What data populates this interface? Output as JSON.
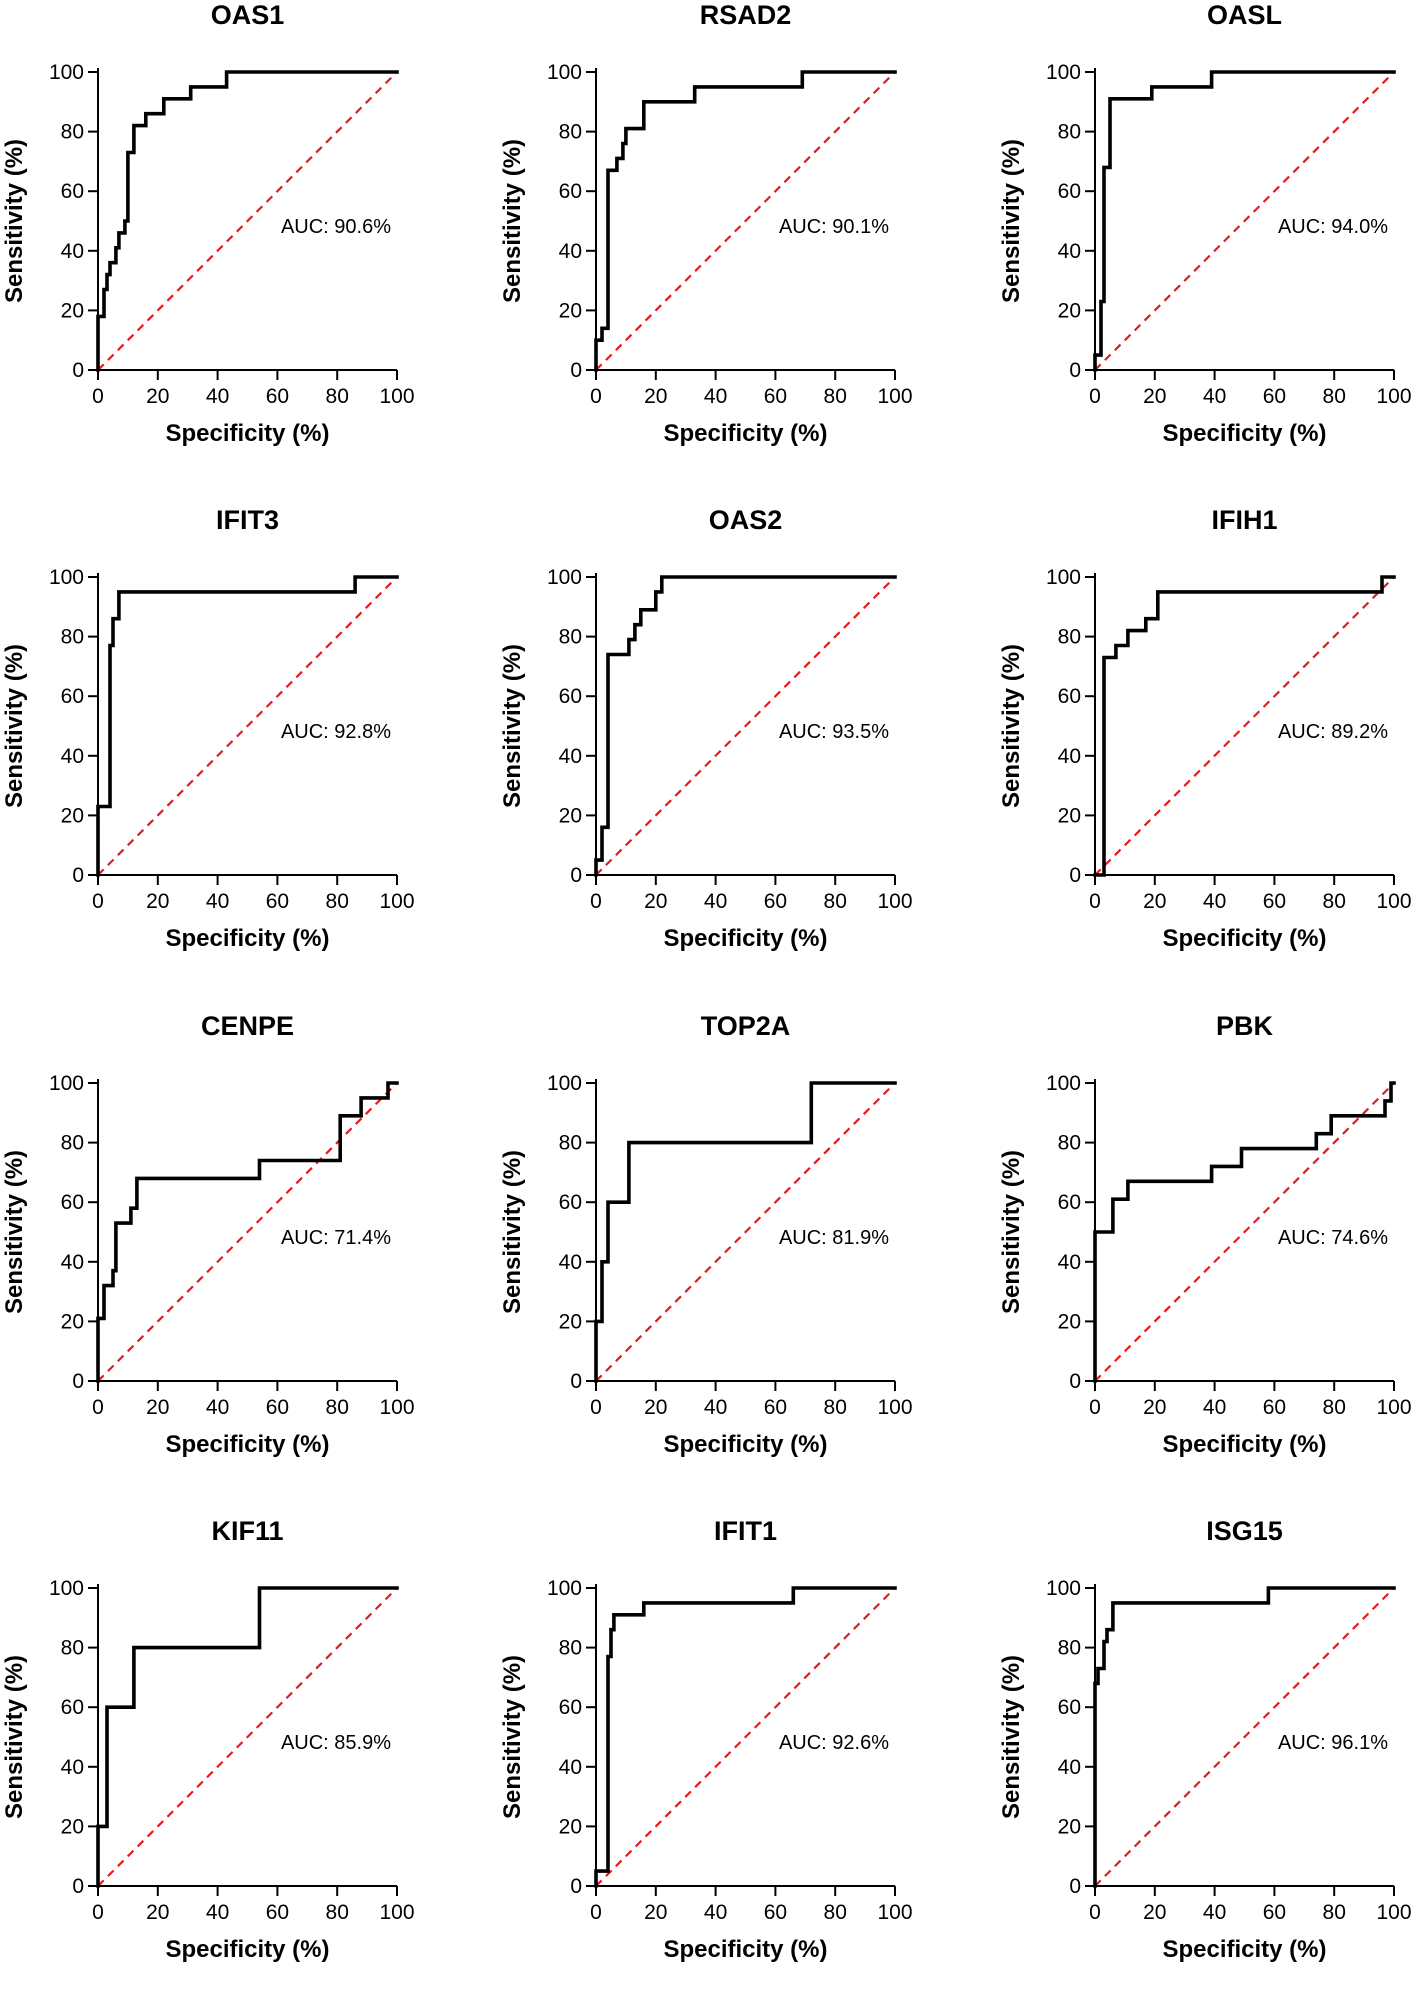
{
  "chart_data": [
    {
      "type": "line",
      "title": "OAS1",
      "xlabel": "Specificity (%)",
      "ylabel": "Sensitivity (%)",
      "xlim": [
        0,
        100
      ],
      "ylim": [
        0,
        100
      ],
      "xticks": [
        0,
        20,
        40,
        60,
        80,
        100
      ],
      "yticks": [
        0,
        20,
        40,
        60,
        80,
        100
      ],
      "auc_label": "AUC: 90.6%",
      "series": [
        {
          "name": "ROC",
          "x": [
            0,
            0,
            2,
            2,
            3,
            3,
            4,
            4,
            6,
            6,
            7,
            7,
            9,
            9,
            10,
            10,
            12,
            12,
            16,
            16,
            22,
            22,
            25,
            25,
            31,
            31,
            36,
            36,
            43,
            43,
            100
          ],
          "y": [
            0,
            18,
            18,
            27,
            27,
            32,
            32,
            36,
            36,
            41,
            41,
            46,
            46,
            50,
            50,
            73,
            73,
            82,
            82,
            86,
            86,
            91,
            91,
            91,
            91,
            95,
            95,
            95,
            95,
            100,
            100
          ]
        },
        {
          "name": "Reference",
          "x": [
            0,
            100
          ],
          "y": [
            0,
            100
          ]
        }
      ]
    },
    {
      "type": "line",
      "title": "RSAD2",
      "xlabel": "Specificity (%)",
      "ylabel": "Sensitivity (%)",
      "xlim": [
        0,
        100
      ],
      "ylim": [
        0,
        100
      ],
      "xticks": [
        0,
        20,
        40,
        60,
        80,
        100
      ],
      "yticks": [
        0,
        20,
        40,
        60,
        80,
        100
      ],
      "auc_label": "AUC: 90.1%",
      "series": [
        {
          "name": "ROC",
          "x": [
            0,
            0,
            2,
            2,
            4,
            4,
            7,
            7,
            9,
            9,
            10,
            10,
            13,
            13,
            16,
            16,
            33,
            33,
            69,
            69,
            100
          ],
          "y": [
            0,
            10,
            10,
            14,
            14,
            67,
            67,
            71,
            71,
            76,
            76,
            81,
            81,
            81,
            81,
            90,
            90,
            95,
            95,
            100,
            100
          ]
        },
        {
          "name": "Reference",
          "x": [
            0,
            100
          ],
          "y": [
            0,
            100
          ]
        }
      ]
    },
    {
      "type": "line",
      "title": "OASL",
      "xlabel": "Specificity (%)",
      "ylabel": "Sensitivity (%)",
      "xlim": [
        0,
        100
      ],
      "ylim": [
        0,
        100
      ],
      "xticks": [
        0,
        20,
        40,
        60,
        80,
        100
      ],
      "yticks": [
        0,
        20,
        40,
        60,
        80,
        100
      ],
      "auc_label": "AUC: 94.0%",
      "series": [
        {
          "name": "ROC",
          "x": [
            0,
            0,
            2,
            2,
            3,
            3,
            5,
            5,
            6,
            6,
            19,
            19,
            39,
            39,
            100
          ],
          "y": [
            0,
            5,
            5,
            23,
            23,
            68,
            68,
            91,
            91,
            91,
            91,
            95,
            95,
            100,
            100
          ]
        },
        {
          "name": "Reference",
          "x": [
            0,
            100
          ],
          "y": [
            0,
            100
          ]
        }
      ]
    },
    {
      "type": "line",
      "title": "IFIT3",
      "xlabel": "Specificity (%)",
      "ylabel": "Sensitivity (%)",
      "xlim": [
        0,
        100
      ],
      "ylim": [
        0,
        100
      ],
      "xticks": [
        0,
        20,
        40,
        60,
        80,
        100
      ],
      "yticks": [
        0,
        20,
        40,
        60,
        80,
        100
      ],
      "auc_label": "AUC: 92.8%",
      "series": [
        {
          "name": "ROC",
          "x": [
            0,
            0,
            4,
            4,
            5,
            5,
            7,
            7,
            86,
            86,
            100
          ],
          "y": [
            0,
            23,
            23,
            77,
            77,
            86,
            86,
            95,
            95,
            100,
            100
          ]
        },
        {
          "name": "Reference",
          "x": [
            0,
            100
          ],
          "y": [
            0,
            100
          ]
        }
      ]
    },
    {
      "type": "line",
      "title": "OAS2",
      "xlabel": "Specificity (%)",
      "ylabel": "Sensitivity (%)",
      "xlim": [
        0,
        100
      ],
      "ylim": [
        0,
        100
      ],
      "xticks": [
        0,
        20,
        40,
        60,
        80,
        100
      ],
      "yticks": [
        0,
        20,
        40,
        60,
        80,
        100
      ],
      "auc_label": "AUC: 93.5%",
      "series": [
        {
          "name": "ROC",
          "x": [
            0,
            0,
            2,
            2,
            4,
            4,
            11,
            11,
            13,
            13,
            15,
            15,
            20,
            20,
            22,
            22,
            100
          ],
          "y": [
            0,
            5,
            5,
            16,
            16,
            74,
            74,
            79,
            79,
            84,
            84,
            89,
            89,
            95,
            95,
            100,
            100
          ]
        },
        {
          "name": "Reference",
          "x": [
            0,
            100
          ],
          "y": [
            0,
            100
          ]
        }
      ]
    },
    {
      "type": "line",
      "title": "IFIH1",
      "xlabel": "Specificity (%)",
      "ylabel": "Sensitivity (%)",
      "xlim": [
        0,
        100
      ],
      "ylim": [
        0,
        100
      ],
      "xticks": [
        0,
        20,
        40,
        60,
        80,
        100
      ],
      "yticks": [
        0,
        20,
        40,
        60,
        80,
        100
      ],
      "auc_label": "AUC: 89.2%",
      "series": [
        {
          "name": "ROC",
          "x": [
            0,
            3,
            3,
            7,
            7,
            11,
            11,
            17,
            17,
            19,
            19,
            21,
            21,
            96,
            96,
            100
          ],
          "y": [
            0,
            0,
            73,
            73,
            77,
            77,
            82,
            82,
            86,
            86,
            86,
            86,
            95,
            95,
            100,
            100
          ]
        },
        {
          "name": "Reference",
          "x": [
            0,
            100
          ],
          "y": [
            0,
            100
          ]
        }
      ]
    },
    {
      "type": "line",
      "title": "CENPE",
      "xlabel": "Specificity (%)",
      "ylabel": "Sensitivity (%)",
      "xlim": [
        0,
        100
      ],
      "ylim": [
        0,
        100
      ],
      "xticks": [
        0,
        20,
        40,
        60,
        80,
        100
      ],
      "yticks": [
        0,
        20,
        40,
        60,
        80,
        100
      ],
      "auc_label": "AUC: 71.4%",
      "series": [
        {
          "name": "ROC",
          "x": [
            0,
            0,
            2,
            2,
            4,
            4,
            5,
            5,
            6,
            6,
            11,
            11,
            13,
            13,
            54,
            54,
            81,
            81,
            88,
            88,
            93,
            93,
            97,
            97,
            100
          ],
          "y": [
            0,
            21,
            21,
            32,
            32,
            32,
            32,
            37,
            37,
            53,
            53,
            58,
            58,
            68,
            68,
            74,
            74,
            89,
            89,
            95,
            95,
            95,
            95,
            100,
            100
          ]
        },
        {
          "name": "Reference",
          "x": [
            0,
            100
          ],
          "y": [
            0,
            100
          ]
        }
      ]
    },
    {
      "type": "line",
      "title": "TOP2A",
      "xlabel": "Specificity (%)",
      "ylabel": "Sensitivity (%)",
      "xlim": [
        0,
        100
      ],
      "ylim": [
        0,
        100
      ],
      "xticks": [
        0,
        20,
        40,
        60,
        80,
        100
      ],
      "yticks": [
        0,
        20,
        40,
        60,
        80,
        100
      ],
      "auc_label": "AUC: 81.9%",
      "series": [
        {
          "name": "ROC",
          "x": [
            0,
            0,
            2,
            2,
            4,
            4,
            11,
            11,
            72,
            72,
            100
          ],
          "y": [
            0,
            20,
            20,
            40,
            40,
            60,
            60,
            80,
            80,
            100,
            100
          ]
        },
        {
          "name": "Reference",
          "x": [
            0,
            100
          ],
          "y": [
            0,
            100
          ]
        }
      ]
    },
    {
      "type": "line",
      "title": "PBK",
      "xlabel": "Specificity (%)",
      "ylabel": "Sensitivity (%)",
      "xlim": [
        0,
        100
      ],
      "ylim": [
        0,
        100
      ],
      "xticks": [
        0,
        20,
        40,
        60,
        80,
        100
      ],
      "yticks": [
        0,
        20,
        40,
        60,
        80,
        100
      ],
      "auc_label": "AUC: 74.6%",
      "series": [
        {
          "name": "ROC",
          "x": [
            0,
            0,
            6,
            6,
            9,
            9,
            11,
            11,
            39,
            39,
            49,
            49,
            74,
            74,
            79,
            79,
            97,
            97,
            99,
            99,
            100
          ],
          "y": [
            0,
            50,
            50,
            61,
            61,
            61,
            61,
            67,
            67,
            72,
            72,
            78,
            78,
            83,
            83,
            89,
            89,
            94,
            94,
            100,
            100
          ]
        },
        {
          "name": "Reference",
          "x": [
            0,
            100
          ],
          "y": [
            0,
            100
          ]
        }
      ]
    },
    {
      "type": "line",
      "title": "KIF11",
      "xlabel": "Specificity (%)",
      "ylabel": "Sensitivity (%)",
      "xlim": [
        0,
        100
      ],
      "ylim": [
        0,
        100
      ],
      "xticks": [
        0,
        20,
        40,
        60,
        80,
        100
      ],
      "yticks": [
        0,
        20,
        40,
        60,
        80,
        100
      ],
      "auc_label": "AUC: 85.9%",
      "series": [
        {
          "name": "ROC",
          "x": [
            0,
            0,
            3,
            3,
            12,
            12,
            54,
            54,
            100
          ],
          "y": [
            0,
            20,
            20,
            60,
            60,
            80,
            80,
            100,
            100
          ]
        },
        {
          "name": "Reference",
          "x": [
            0,
            100
          ],
          "y": [
            0,
            100
          ]
        }
      ]
    },
    {
      "type": "line",
      "title": "IFIT1",
      "xlabel": "Specificity (%)",
      "ylabel": "Sensitivity (%)",
      "xlim": [
        0,
        100
      ],
      "ylim": [
        0,
        100
      ],
      "xticks": [
        0,
        20,
        40,
        60,
        80,
        100
      ],
      "yticks": [
        0,
        20,
        40,
        60,
        80,
        100
      ],
      "auc_label": "AUC: 92.6%",
      "series": [
        {
          "name": "ROC",
          "x": [
            0,
            0,
            4,
            4,
            5,
            5,
            6,
            6,
            16,
            16,
            66,
            66,
            100
          ],
          "y": [
            0,
            5,
            5,
            77,
            77,
            86,
            86,
            91,
            91,
            95,
            95,
            100,
            100
          ]
        },
        {
          "name": "Reference",
          "x": [
            0,
            100
          ],
          "y": [
            0,
            100
          ]
        }
      ]
    },
    {
      "type": "line",
      "title": "ISG15",
      "xlabel": "Specificity (%)",
      "ylabel": "Sensitivity (%)",
      "xlim": [
        0,
        100
      ],
      "ylim": [
        0,
        100
      ],
      "xticks": [
        0,
        20,
        40,
        60,
        80,
        100
      ],
      "yticks": [
        0,
        20,
        40,
        60,
        80,
        100
      ],
      "auc_label": "AUC: 96.1%",
      "series": [
        {
          "name": "ROC",
          "x": [
            0,
            0,
            1,
            1,
            3,
            3,
            4,
            4,
            6,
            6,
            58,
            58,
            100
          ],
          "y": [
            0,
            68,
            68,
            73,
            73,
            82,
            82,
            86,
            86,
            95,
            95,
            100,
            100
          ]
        },
        {
          "name": "Reference",
          "x": [
            0,
            100
          ],
          "y": [
            0,
            100
          ]
        }
      ]
    }
  ],
  "colors": {
    "roc": "#000000",
    "reference": "#e41a1c",
    "axis": "#000000"
  }
}
